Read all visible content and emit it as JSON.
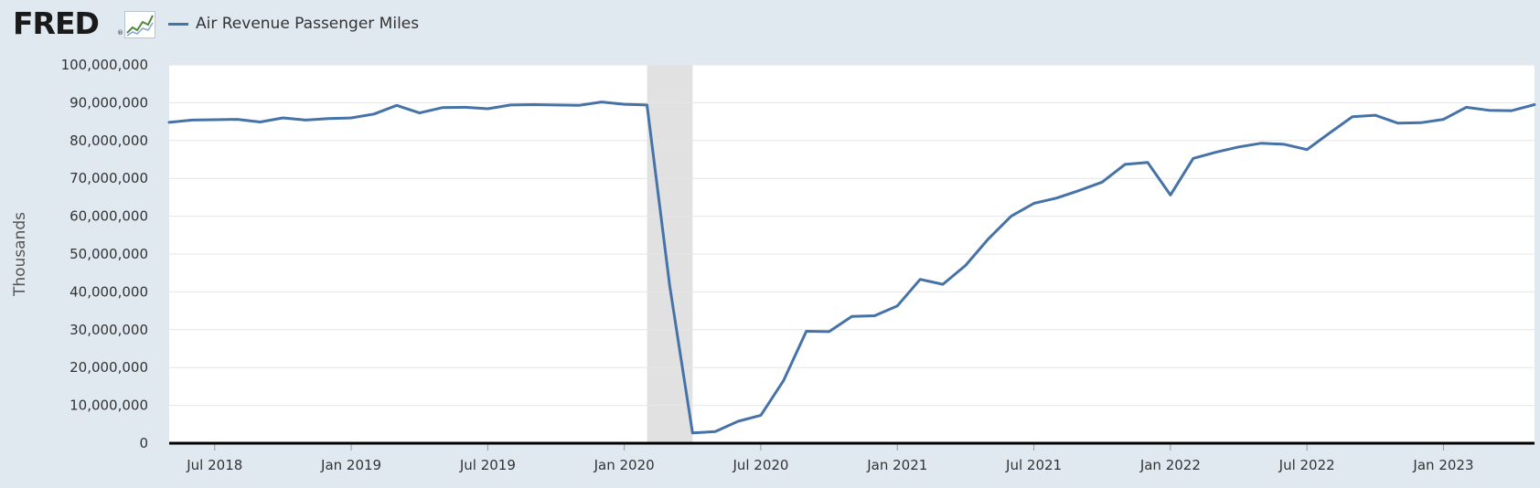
{
  "header": {
    "logo_text": "FRED",
    "logo_mark": "®",
    "logo_icon": "line-chart-icon"
  },
  "colors": {
    "background": "#e1e9f0",
    "plot_background": "#ffffff",
    "series": "#4572a7",
    "recession": "#e1e1e1",
    "gridline": "#e6e6e6",
    "axis": "#000000"
  },
  "chart_data": {
    "type": "line",
    "title": "",
    "xlabel": "",
    "ylabel": "Thousands",
    "ylim": [
      0,
      100000000
    ],
    "grid": true,
    "legend": "top-left",
    "y_ticks": [
      0,
      10000000,
      20000000,
      30000000,
      40000000,
      50000000,
      60000000,
      70000000,
      80000000,
      90000000,
      100000000
    ],
    "y_tick_labels": [
      "0",
      "10,000,000",
      "20,000,000",
      "30,000,000",
      "40,000,000",
      "50,000,000",
      "60,000,000",
      "70,000,000",
      "80,000,000",
      "90,000,000",
      "100,000,000"
    ],
    "x_range": [
      "2018-05",
      "2023-05"
    ],
    "x_ticks": [
      "2018-07",
      "2019-01",
      "2019-07",
      "2020-01",
      "2020-07",
      "2021-01",
      "2021-07",
      "2022-01",
      "2022-07",
      "2023-01"
    ],
    "x_tick_labels": [
      "Jul 2018",
      "Jan 2019",
      "Jul 2019",
      "Jan 2020",
      "Jul 2020",
      "Jan 2021",
      "Jul 2021",
      "Jan 2022",
      "Jul 2022",
      "Jan 2023"
    ],
    "recessions": [
      {
        "start": "2020-02",
        "end": "2020-04"
      }
    ],
    "series": [
      {
        "name": "Air Revenue Passenger Miles",
        "color": "#4572a7",
        "x": [
          "2018-05",
          "2018-06",
          "2018-07",
          "2018-08",
          "2018-09",
          "2018-10",
          "2018-11",
          "2018-12",
          "2019-01",
          "2019-02",
          "2019-03",
          "2019-04",
          "2019-05",
          "2019-06",
          "2019-07",
          "2019-08",
          "2019-09",
          "2019-10",
          "2019-11",
          "2019-12",
          "2020-01",
          "2020-02",
          "2020-03",
          "2020-04",
          "2020-05",
          "2020-06",
          "2020-07",
          "2020-08",
          "2020-09",
          "2020-10",
          "2020-11",
          "2020-12",
          "2021-01",
          "2021-02",
          "2021-03",
          "2021-04",
          "2021-05",
          "2021-06",
          "2021-07",
          "2021-08",
          "2021-09",
          "2021-10",
          "2021-11",
          "2021-12",
          "2022-01",
          "2022-02",
          "2022-03",
          "2022-04",
          "2022-05",
          "2022-06",
          "2022-07",
          "2022-08",
          "2022-09",
          "2022-10",
          "2022-11",
          "2022-12",
          "2023-01",
          "2023-02",
          "2023-03",
          "2023-04",
          "2023-05"
        ],
        "values": [
          84800000,
          85400000,
          85500000,
          85600000,
          84900000,
          86000000,
          85400000,
          85800000,
          86000000,
          87000000,
          89300000,
          87300000,
          88700000,
          88800000,
          88400000,
          89400000,
          89500000,
          89400000,
          89300000,
          90200000,
          89600000,
          89400000,
          41500000,
          2700000,
          3100000,
          5800000,
          7400000,
          16600000,
          29600000,
          29500000,
          33500000,
          33700000,
          36300000,
          43300000,
          42000000,
          47000000,
          54000000,
          60000000,
          63400000,
          64800000,
          66800000,
          69000000,
          73700000,
          74200000,
          65600000,
          75300000,
          76900000,
          78300000,
          79300000,
          79000000,
          77600000,
          82000000,
          86300000,
          86700000,
          84600000,
          84700000,
          85600000,
          88800000,
          88000000,
          87900000,
          89500000
        ]
      }
    ]
  }
}
